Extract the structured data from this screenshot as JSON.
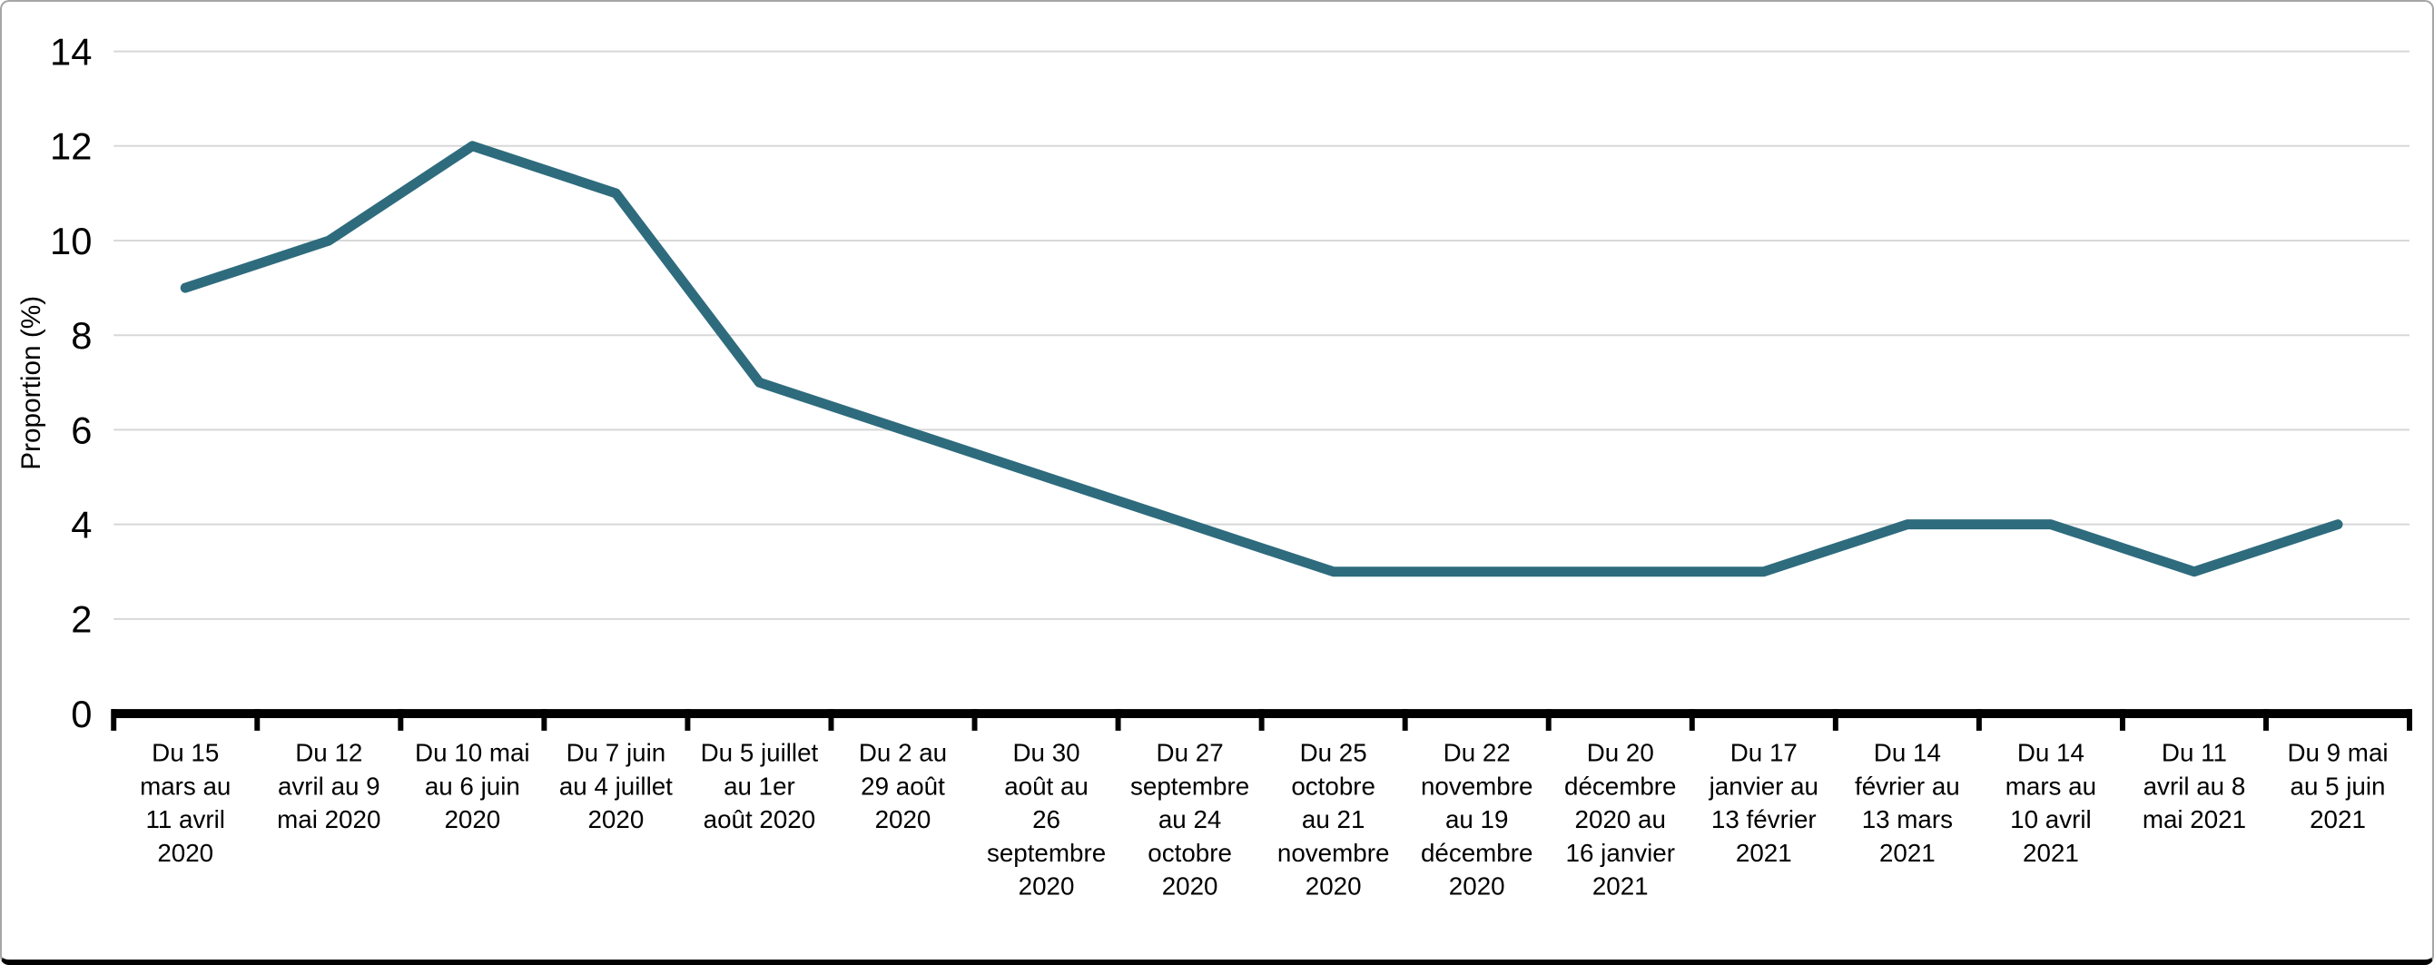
{
  "chart_data": {
    "type": "line",
    "title": "",
    "xlabel": "",
    "ylabel": "Proportion (%)",
    "ylim": [
      0,
      14
    ],
    "yticks": [
      0,
      2,
      4,
      6,
      8,
      10,
      12,
      14
    ],
    "grid": "horizontal-light",
    "legend_position": "none",
    "line_color": "#2e6b7d",
    "categories": [
      "Du 15 mars au 11 avril 2020",
      "Du 12 avril au 9 mai 2020",
      "Du 10 mai au 6 juin 2020",
      "Du 7 juin au 4 juillet 2020",
      "Du 5 juillet au 1er août 2020",
      "Du 2 au 29 août 2020",
      "Du 30 août au 26 septembre 2020",
      "Du 27 septembre au 24 octobre 2020",
      "Du 25 octobre au 21 novembre 2020",
      "Du 22 novembre au 19 décembre 2020",
      "Du 20 décembre 2020 au 16 janvier 2021",
      "Du 17 janvier au 13 février 2021",
      "Du 14 février au 13 mars 2021",
      "Du 14 mars au 10 avril 2021",
      "Du 11 avril au 8 mai 2021",
      "Du 9 mai au 5 juin 2021"
    ],
    "category_lines": [
      [
        "Du 15",
        "mars au",
        "11 avril",
        "2020"
      ],
      [
        "Du 12",
        "avril au 9",
        "mai 2020"
      ],
      [
        "Du 10 mai",
        "au 6 juin",
        "2020"
      ],
      [
        "Du 7 juin",
        "au 4 juillet",
        "2020"
      ],
      [
        "Du 5 juillet",
        "au 1er",
        "août 2020"
      ],
      [
        "Du 2 au",
        "29 août",
        "2020"
      ],
      [
        "Du 30",
        "août au",
        "26",
        "septembre",
        "2020"
      ],
      [
        "Du 27",
        "septembre",
        "au 24",
        "octobre",
        "2020"
      ],
      [
        "Du 25",
        "octobre",
        "au 21",
        "novembre",
        "2020"
      ],
      [
        "Du 22",
        "novembre",
        "au 19",
        "décembre",
        "2020"
      ],
      [
        "Du 20",
        "décembre",
        "2020 au",
        "16 janvier",
        "2021"
      ],
      [
        "Du 17",
        "janvier au",
        "13 février",
        "2021"
      ],
      [
        "Du 14",
        "février au",
        "13 mars",
        "2021"
      ],
      [
        "Du 14",
        "mars au",
        "10 avril",
        "2021"
      ],
      [
        "Du 11",
        "avril au 8",
        "mai 2021"
      ],
      [
        "Du 9 mai",
        "au 5 juin",
        "2021"
      ]
    ],
    "values": [
      9,
      10,
      12,
      11,
      7,
      6,
      5,
      4,
      3,
      3,
      3,
      3,
      4,
      4,
      3,
      4
    ]
  },
  "colors": {
    "line": "#2e6b7d",
    "grid": "#d8d8d8",
    "axis": "#000000",
    "text": "#000000",
    "frame_border": "#a6a6a6",
    "frame_bottom": "#000000",
    "background": "#ffffff"
  }
}
